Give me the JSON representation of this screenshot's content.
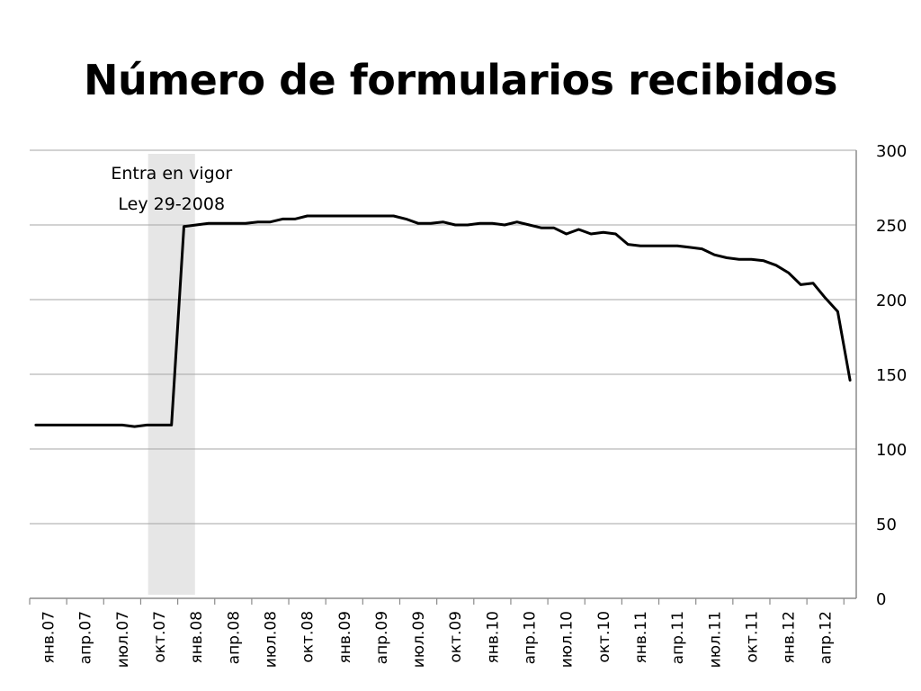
{
  "chart_data": {
    "type": "line",
    "title": "Número de formularios recibidos",
    "xlabel": "",
    "ylabel": "",
    "ylim": [
      0,
      300
    ],
    "y_ticks": [
      0,
      50,
      100,
      150,
      200,
      250,
      300
    ],
    "y_axis_side": "right",
    "grid": true,
    "x_tick_labels": [
      "янв.07",
      "апр.07",
      "июл.07",
      "окт.07",
      "янв.08",
      "апр.08",
      "июл.08",
      "окт.08",
      "янв.09",
      "апр.09",
      "июл.09",
      "окт.09",
      "янв.10",
      "апр.10",
      "июл.10",
      "окт.10",
      "янв.11",
      "апр.11",
      "июл.11",
      "окт.11",
      "янв.12",
      "апр.12"
    ],
    "highlight_band": {
      "label": "Entra en vigor Ley 29-2008",
      "from": "окт.07",
      "to": "янв.08",
      "color": "#e6e6e6"
    },
    "annotation": {
      "lines": [
        "Entra en vigor",
        "Ley 29-2008"
      ]
    },
    "series": [
      {
        "color": "#000000",
        "values": [
          116,
          116,
          116,
          116,
          116,
          116,
          116,
          116,
          115,
          116,
          116,
          116,
          249,
          250,
          251,
          251,
          251,
          251,
          252,
          252,
          254,
          254,
          256,
          256,
          256,
          256,
          256,
          256,
          256,
          256,
          254,
          251,
          251,
          252,
          250,
          250,
          251,
          251,
          250,
          252,
          250,
          248,
          248,
          244,
          247,
          244,
          245,
          244,
          237,
          236,
          236,
          236,
          236,
          235,
          234,
          230,
          228,
          227,
          227,
          226,
          223,
          218,
          210,
          211,
          201,
          192,
          146
        ]
      }
    ]
  }
}
